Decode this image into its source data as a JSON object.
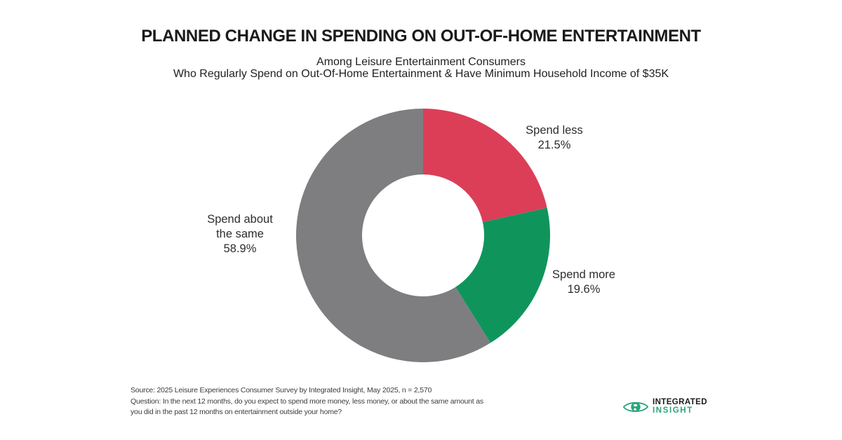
{
  "header": {
    "title": "PLANNED CHANGE IN SPENDING ON OUT-OF-HOME ENTERTAINMENT",
    "subtitle_line1": "Among Leisure Entertainment Consumers",
    "subtitle_line2": "Who Regularly Spend on Out-Of-Home Entertainment & Have Minimum Household Income of $35K"
  },
  "chart_data": {
    "type": "pie",
    "variant": "donut",
    "title": "Planned Change in Spending on Out-of-Home Entertainment",
    "start_angle_deg": 0,
    "direction": "clockwise",
    "inner_radius_ratio": 0.48,
    "legend_position": "outside-labels",
    "segments": [
      {
        "label": "Spend less",
        "value": 21.5,
        "pct_label": "21.5%",
        "color": "#dc3e58"
      },
      {
        "label": "Spend more",
        "value": 19.6,
        "pct_label": "19.6%",
        "color": "#0f955c"
      },
      {
        "label": "Spend about the same",
        "label_lines": [
          "Spend about",
          "the same"
        ],
        "value": 58.9,
        "pct_label": "58.9%",
        "color": "#7e7e80"
      }
    ]
  },
  "footer": {
    "source_line1": "Source: 2025 Leisure Experiences Consumer Survey by Integrated Insight, May 2025, n = 2,570",
    "source_line2": "Question: In the next 12 months, do you expect to spend more money, less money, or about the same amount as",
    "source_line3": "you did in the past 12 months on entertainment outside your home?"
  },
  "logo": {
    "line1": "INTEGRATED",
    "line2": "INSIGHT",
    "text_color": "#1a1a1a",
    "accent_color": "#2ba47c"
  }
}
